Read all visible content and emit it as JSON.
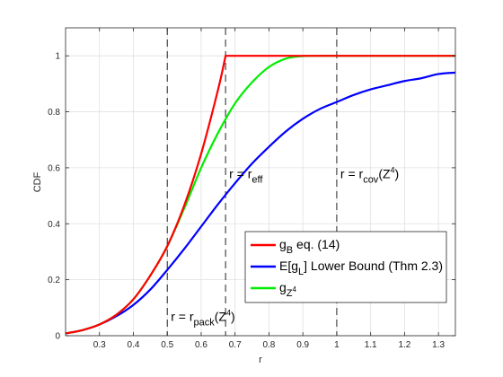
{
  "chart_data": {
    "type": "line",
    "title": "",
    "xlabel": "r",
    "ylabel": "CDF",
    "xlim": [
      0.2,
      1.35
    ],
    "ylim": [
      0,
      1.1
    ],
    "grid": true,
    "legend_position": "lower-right",
    "xticks": [
      0.3,
      0.4,
      0.5,
      0.6,
      0.7,
      0.8,
      0.9,
      1,
      1.1,
      1.2,
      1.3
    ],
    "xtick_labels": [
      "0.3",
      "0.4",
      "0.5",
      "0.6",
      "0.7",
      "0.8",
      "0.9",
      "1",
      "1.1",
      "1.2",
      "1.3"
    ],
    "yticks": [
      0,
      0.2,
      0.4,
      0.6,
      0.8,
      1
    ],
    "ytick_labels": [
      "0",
      "0.2",
      "0.4",
      "0.6",
      "0.8",
      "1"
    ],
    "series": [
      {
        "name": "g_B eq. (14)",
        "color": "#ff0000",
        "x": [
          0.2,
          0.25,
          0.3,
          0.35,
          0.4,
          0.45,
          0.5,
          0.55,
          0.6,
          0.65,
          0.672,
          0.7,
          0.8,
          0.9,
          1.0,
          1.1,
          1.2,
          1.3,
          1.35
        ],
        "y": [
          0.008,
          0.02,
          0.04,
          0.075,
          0.13,
          0.215,
          0.32,
          0.465,
          0.65,
          0.88,
          1.0,
          1.0,
          1.0,
          1.0,
          1.0,
          1.0,
          1.0,
          1.0,
          1.0
        ]
      },
      {
        "name": "E[g_L] Lower Bound (Thm 2.3)",
        "color": "#0000ff",
        "x": [
          0.2,
          0.25,
          0.3,
          0.35,
          0.4,
          0.45,
          0.5,
          0.55,
          0.6,
          0.65,
          0.7,
          0.75,
          0.8,
          0.85,
          0.9,
          0.95,
          1.0,
          1.05,
          1.1,
          1.15,
          1.2,
          1.25,
          1.3,
          1.35
        ],
        "y": [
          0.008,
          0.02,
          0.04,
          0.07,
          0.11,
          0.165,
          0.235,
          0.31,
          0.39,
          0.47,
          0.545,
          0.615,
          0.675,
          0.73,
          0.775,
          0.81,
          0.835,
          0.86,
          0.88,
          0.895,
          0.91,
          0.92,
          0.935,
          0.94
        ]
      },
      {
        "name": "g_{Z^4}",
        "color": "#00ee00",
        "x": [
          0.2,
          0.25,
          0.3,
          0.35,
          0.4,
          0.45,
          0.5,
          0.55,
          0.6,
          0.65,
          0.7,
          0.75,
          0.8,
          0.85,
          0.9,
          0.95,
          1.0,
          1.1,
          1.2,
          1.35
        ],
        "y": [
          0.008,
          0.02,
          0.04,
          0.075,
          0.13,
          0.215,
          0.32,
          0.455,
          0.6,
          0.725,
          0.83,
          0.905,
          0.96,
          0.99,
          0.999,
          1.0,
          1.0,
          1.0,
          1.0,
          1.0
        ]
      }
    ],
    "vlines": [
      0.5,
      0.672,
      1.0
    ],
    "annotations": [
      {
        "text": "r = r",
        "sub": "eff",
        "x": 0.672,
        "y": 0.55
      },
      {
        "text": "r = r",
        "sub": "cov",
        "paren": "(Z",
        "sup": "4",
        "close": ")",
        "x": 1.0,
        "y": 0.55
      },
      {
        "text": "r = r",
        "sub": "pack",
        "paren": "(Z",
        "sup": "4",
        "close": ")",
        "x": 0.5,
        "y": 0.04
      }
    ],
    "legend": [
      {
        "pre": "g",
        "sub": "B",
        "post": " eq. (14)",
        "color": "#ff0000"
      },
      {
        "pre": "E[g",
        "sub": "L",
        "post": "] Lower Bound (Thm 2.3)",
        "color": "#0000ff"
      },
      {
        "pre": "g",
        "sub": "Z",
        "sup": "4",
        "post": "",
        "color": "#00ee00"
      }
    ]
  }
}
